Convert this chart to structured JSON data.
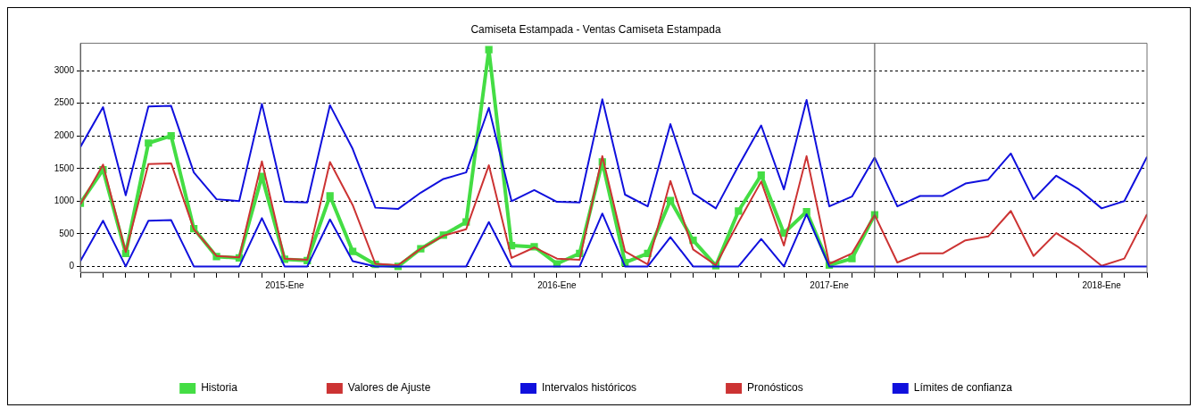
{
  "chart_data": {
    "type": "line",
    "title": "Camiseta Estampada - Ventas Camiseta Estampada",
    "x": [
      "2014-04",
      "2014-05",
      "2014-06",
      "2014-07",
      "2014-08",
      "2014-09",
      "2014-10",
      "2014-11",
      "2014-12",
      "2015-01",
      "2015-02",
      "2015-03",
      "2015-04",
      "2015-05",
      "2015-06",
      "2015-07",
      "2015-08",
      "2015-09",
      "2015-10",
      "2015-11",
      "2015-12",
      "2016-01",
      "2016-02",
      "2016-03",
      "2016-04",
      "2016-05",
      "2016-06",
      "2016-07",
      "2016-08",
      "2016-09",
      "2016-10",
      "2016-11",
      "2016-12",
      "2017-01",
      "2017-02",
      "2017-03",
      "2017-04",
      "2017-05",
      "2017-06",
      "2017-07",
      "2017-08",
      "2017-09",
      "2017-10",
      "2017-11",
      "2017-12",
      "2018-01",
      "2018-02",
      "2018-03"
    ],
    "series": [
      {
        "name": "Límites de confianza",
        "color": "#1010dd",
        "values": [
          null,
          null,
          null,
          null,
          null,
          null,
          null,
          null,
          null,
          null,
          null,
          null,
          null,
          null,
          null,
          null,
          null,
          null,
          null,
          null,
          null,
          null,
          null,
          null,
          null,
          null,
          null,
          null,
          null,
          null,
          null,
          null,
          null,
          null,
          null,
          1670,
          920,
          1080,
          1080,
          1270,
          1330,
          1730,
          1030,
          1390,
          1180,
          890,
          1000,
          1680
        ]
      },
      {
        "color": "#1010dd",
        "values": [
          80,
          700,
          0,
          700,
          710,
          0,
          0,
          0,
          740,
          0,
          0,
          720,
          80,
          0,
          0,
          0,
          0,
          0,
          680,
          0,
          0,
          0,
          0,
          810,
          0,
          0,
          450,
          0,
          0,
          0,
          420,
          0,
          800,
          0,
          0,
          0,
          0,
          0,
          0,
          0,
          0,
          0,
          0,
          0,
          0,
          0,
          0,
          0
        ]
      },
      {
        "name": "Pronósticos",
        "color": "#cc3333",
        "values": [
          null,
          null,
          null,
          null,
          null,
          null,
          null,
          null,
          null,
          null,
          null,
          null,
          null,
          null,
          null,
          null,
          null,
          null,
          null,
          null,
          null,
          null,
          null,
          null,
          null,
          null,
          null,
          null,
          null,
          null,
          null,
          null,
          null,
          null,
          null,
          790,
          60,
          200,
          200,
          400,
          460,
          850,
          160,
          510,
          290,
          10,
          120,
          800
        ]
      },
      {
        "name": "Intervalos históricos",
        "color": "#1010dd",
        "values": [
          1830,
          2440,
          1090,
          2450,
          2460,
          1440,
          1030,
          1000,
          2490,
          990,
          980,
          2470,
          1800,
          900,
          880,
          1130,
          1340,
          1440,
          2430,
          1000,
          1170,
          990,
          980,
          2560,
          1100,
          920,
          2180,
          1120,
          890,
          1540,
          2160,
          1180,
          2550,
          920,
          1070,
          1670,
          null,
          null,
          null,
          null,
          null,
          null,
          null,
          null,
          null,
          null,
          null,
          null
        ]
      },
      {
        "name": "Valores de Ajuste",
        "color": "#cc3333",
        "values": [
          950,
          1560,
          220,
          1570,
          1580,
          570,
          160,
          140,
          1610,
          120,
          100,
          1600,
          940,
          40,
          20,
          270,
          470,
          570,
          1550,
          130,
          290,
          120,
          100,
          1690,
          230,
          30,
          1310,
          260,
          20,
          680,
          1300,
          320,
          1690,
          40,
          200,
          790,
          null,
          null,
          null,
          null,
          null,
          null,
          null,
          null,
          null,
          null,
          null,
          null
        ]
      },
      {
        "name": "Historia",
        "color": "#44dd44",
        "marker": "square",
        "values": [
          970,
          1480,
          200,
          1890,
          2000,
          580,
          150,
          130,
          1380,
          110,
          90,
          1080,
          230,
          30,
          0,
          270,
          480,
          680,
          3320,
          320,
          300,
          40,
          200,
          1600,
          60,
          200,
          1010,
          400,
          10,
          850,
          1400,
          510,
          840,
          20,
          120,
          790,
          null,
          null,
          null,
          null,
          null,
          null,
          null,
          null,
          null,
          null,
          null,
          null
        ]
      }
    ],
    "xlim": [
      "2014-04",
      "2018-03"
    ],
    "xticks": [
      {
        "value": "2014-04",
        "label": null
      },
      {
        "value": "2014-05",
        "label": null
      },
      {
        "value": "2014-06",
        "label": null
      },
      {
        "value": "2014-07",
        "label": null
      },
      {
        "value": "2014-08",
        "label": null
      },
      {
        "value": "2014-09",
        "label": null
      },
      {
        "value": "2014-10",
        "label": null
      },
      {
        "value": "2014-11",
        "label": null
      },
      {
        "value": "2014-12",
        "label": null
      },
      {
        "value": "2015-01",
        "label": "2015-Ene"
      },
      {
        "value": "2015-02",
        "label": null
      },
      {
        "value": "2015-03",
        "label": null
      },
      {
        "value": "2015-04",
        "label": null
      },
      {
        "value": "2015-05",
        "label": null
      },
      {
        "value": "2015-06",
        "label": null
      },
      {
        "value": "2015-07",
        "label": null
      },
      {
        "value": "2015-08",
        "label": null
      },
      {
        "value": "2015-09",
        "label": null
      },
      {
        "value": "2015-10",
        "label": null
      },
      {
        "value": "2015-11",
        "label": null
      },
      {
        "value": "2015-12",
        "label": null
      },
      {
        "value": "2016-01",
        "label": "2016-Ene"
      },
      {
        "value": "2016-02",
        "label": null
      },
      {
        "value": "2016-03",
        "label": null
      },
      {
        "value": "2016-04",
        "label": null
      },
      {
        "value": "2016-05",
        "label": null
      },
      {
        "value": "2016-06",
        "label": null
      },
      {
        "value": "2016-07",
        "label": null
      },
      {
        "value": "2016-08",
        "label": null
      },
      {
        "value": "2016-09",
        "label": null
      },
      {
        "value": "2016-10",
        "label": null
      },
      {
        "value": "2016-11",
        "label": null
      },
      {
        "value": "2016-12",
        "label": null
      },
      {
        "value": "2017-01",
        "label": "2017-Ene"
      },
      {
        "value": "2017-02",
        "label": null
      },
      {
        "value": "2017-03",
        "label": null
      },
      {
        "value": "2017-04",
        "label": null
      },
      {
        "value": "2017-05",
        "label": null
      },
      {
        "value": "2017-06",
        "label": null
      },
      {
        "value": "2017-07",
        "label": null
      },
      {
        "value": "2017-08",
        "label": null
      },
      {
        "value": "2017-09",
        "label": null
      },
      {
        "value": "2017-10",
        "label": null
      },
      {
        "value": "2017-11",
        "label": null
      },
      {
        "value": "2017-12",
        "label": null
      },
      {
        "value": "2018-01",
        "label": "2018-Ene"
      },
      {
        "value": "2018-02",
        "label": null
      },
      {
        "value": "2018-03",
        "label": null
      }
    ],
    "ylim": [
      -90,
      3420
    ],
    "yticks": [
      0,
      500,
      1000,
      1500,
      2000,
      2500,
      3000
    ],
    "ref_lines": [
      {
        "axis": "x",
        "value": "2017-03",
        "color": "#606060"
      }
    ],
    "grid": "y",
    "legend": "bottom",
    "marker": "none",
    "line_style": "solid"
  }
}
